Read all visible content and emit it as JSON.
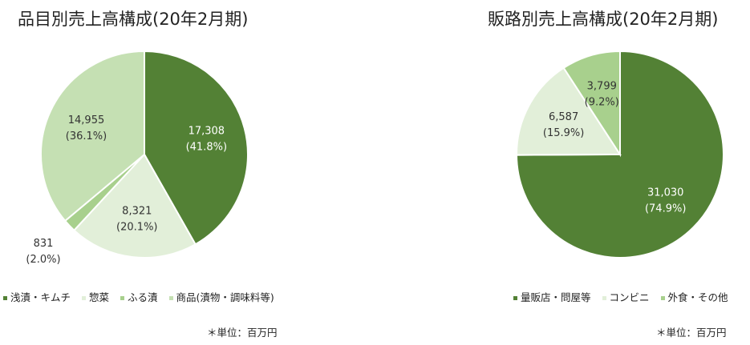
{
  "chart_data": [
    {
      "type": "pie",
      "title": "品目別売上高構成(20年2月期)",
      "slices": [
        {
          "label": "浅漬・キムチ",
          "value": 17308,
          "percent": "41.8%",
          "color": "#538135"
        },
        {
          "label": "惣菜",
          "value": 8321,
          "percent": "20.1%",
          "color": "#e2efd9"
        },
        {
          "label": "ふる漬",
          "value": 831,
          "percent": "2.0%",
          "color": "#a8d08d"
        },
        {
          "label": "商品(漬物・調味料等)",
          "value": 14955,
          "percent": "36.1%",
          "color": "#c5e0b3"
        }
      ],
      "value_labels": [
        "17,308",
        "8,321",
        "831",
        "14,955"
      ],
      "unit_note": "＊単位：百万円"
    },
    {
      "type": "pie",
      "title": "販路別売上高構成(20年2月期)",
      "slices": [
        {
          "label": "量販店・問屋等",
          "value": 31030,
          "percent": "74.9%",
          "color": "#538135"
        },
        {
          "label": "コンビニ",
          "value": 6587,
          "percent": "15.9%",
          "color": "#e2efd9"
        },
        {
          "label": "外食・その他",
          "value": 3799,
          "percent": "9.2%",
          "color": "#a8d08d"
        }
      ],
      "value_labels": [
        "31,030",
        "6,587",
        "3,799"
      ],
      "unit_note": "＊単位：百万円"
    }
  ]
}
